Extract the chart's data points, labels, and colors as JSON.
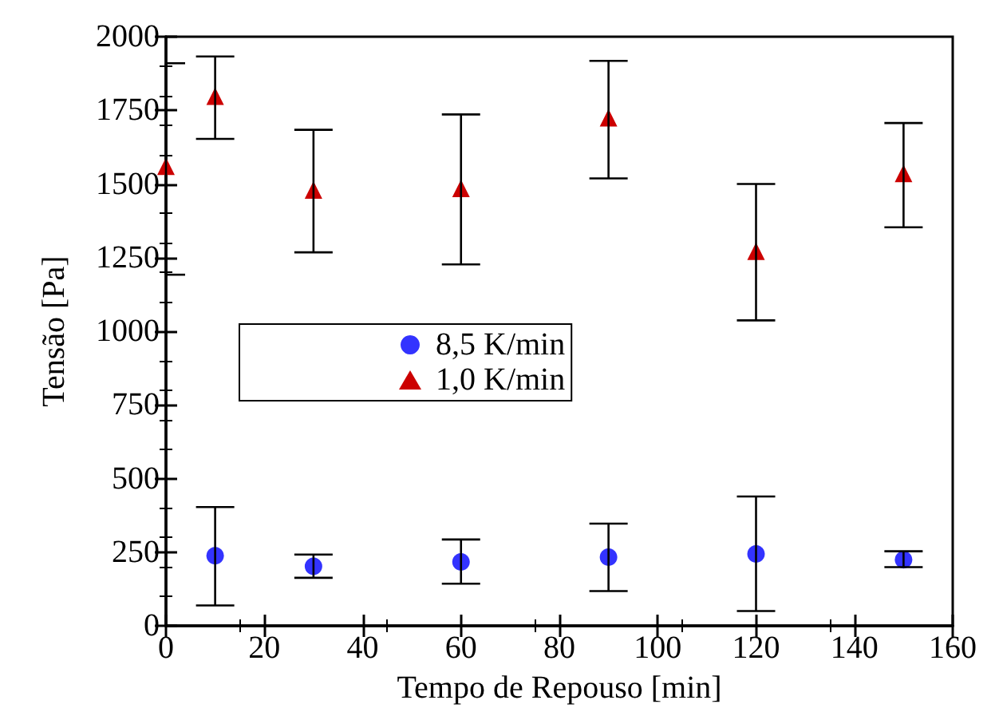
{
  "chart_data": {
    "type": "scatter",
    "xlabel": "Tempo de Repouso [min]",
    "ylabel": "Tensão [Pa]",
    "x": [
      10,
      30,
      60,
      90,
      120,
      150
    ],
    "series": [
      {
        "name": "8,5 K/min",
        "color": "#3333ff",
        "marker": "circle",
        "values": [
          238,
          202,
          217,
          233,
          244,
          224
        ],
        "errors": [
          [
            69,
            403
          ],
          [
            163,
            242
          ],
          [
            143,
            293
          ],
          [
            118,
            347
          ],
          [
            50,
            439
          ],
          [
            199,
            253
          ]
        ]
      },
      {
        "name": "1,0 K/min",
        "color": "#cc0000",
        "marker": "triangle",
        "x": [
          0,
          10,
          30,
          60,
          90,
          120,
          150
        ],
        "values": [
          1560,
          1798,
          1480,
          1485,
          1725,
          1272,
          1536
        ],
        "errors": [
          [
            1192,
            1910
          ],
          [
            1653,
            1933
          ],
          [
            1268,
            1684
          ],
          [
            1227,
            1736
          ],
          [
            1519,
            1918
          ],
          [
            1037,
            1500
          ],
          [
            1353,
            1707
          ]
        ]
      }
    ],
    "xlim": [
      0,
      160
    ],
    "xticks": [
      0,
      20,
      40,
      60,
      80,
      100,
      120,
      140,
      160
    ],
    "ylim": [
      0,
      2000
    ],
    "yticks": [
      0,
      250,
      500,
      750,
      1000,
      1250,
      1500,
      1750,
      2000
    ],
    "grid": false,
    "legend": "left"
  }
}
